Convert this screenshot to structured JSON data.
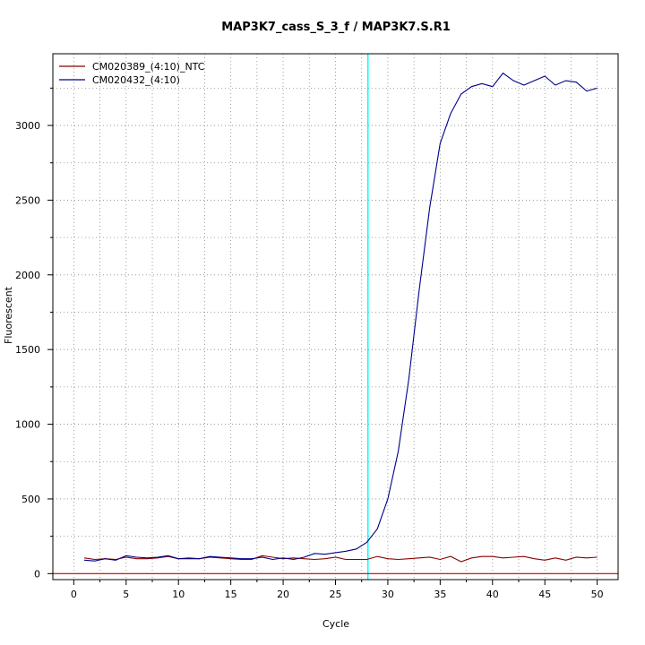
{
  "chart_data": {
    "type": "line",
    "title": "MAP3K7_cass_S_3_f / MAP3K7.S.R1",
    "xlabel": "Cycle",
    "ylabel": "Fluorescent",
    "xlim": [
      -2,
      52
    ],
    "ylim": [
      -40,
      3480
    ],
    "xticks": [
      0,
      5,
      10,
      15,
      20,
      25,
      30,
      35,
      40,
      45,
      50
    ],
    "yticks": [
      0,
      500,
      1000,
      1500,
      2000,
      2500,
      3000
    ],
    "grid": true,
    "legend_position": "top-left",
    "threshold": {
      "color": "#00ffff",
      "x": 28.1
    },
    "baseline": {
      "color": "#cc0000",
      "y": 0
    },
    "x": [
      1,
      2,
      3,
      4,
      5,
      6,
      7,
      8,
      9,
      10,
      11,
      12,
      13,
      14,
      15,
      16,
      17,
      18,
      19,
      20,
      21,
      22,
      23,
      24,
      25,
      26,
      27,
      28,
      29,
      30,
      31,
      32,
      33,
      34,
      35,
      36,
      37,
      38,
      39,
      40,
      41,
      42,
      43,
      44,
      45,
      46,
      47,
      48,
      49,
      50
    ],
    "series": [
      {
        "name": "CM020389_(4:10)_NTC",
        "color": "#8b0000",
        "values": [
          105,
          95,
          100,
          95,
          110,
          100,
          100,
          105,
          115,
          100,
          105,
          100,
          110,
          105,
          100,
          95,
          95,
          120,
          110,
          100,
          105,
          100,
          95,
          100,
          110,
          95,
          95,
          95,
          115,
          100,
          95,
          100,
          105,
          110,
          95,
          115,
          80,
          105,
          115,
          115,
          105,
          110,
          115,
          100,
          90,
          105,
          90,
          110,
          105,
          110
        ]
      },
      {
        "name": "CM020432_(4:10)",
        "color": "#00008b",
        "values": [
          90,
          85,
          100,
          90,
          120,
          110,
          105,
          110,
          120,
          100,
          100,
          100,
          115,
          110,
          105,
          100,
          100,
          110,
          95,
          105,
          95,
          110,
          135,
          130,
          140,
          150,
          165,
          210,
          300,
          500,
          820,
          1300,
          1900,
          2450,
          2880,
          3080,
          3210,
          3260,
          3280,
          3260,
          3350,
          3300,
          3270,
          3300,
          3330,
          3270,
          3300,
          3290,
          3230,
          3250
        ]
      }
    ]
  }
}
